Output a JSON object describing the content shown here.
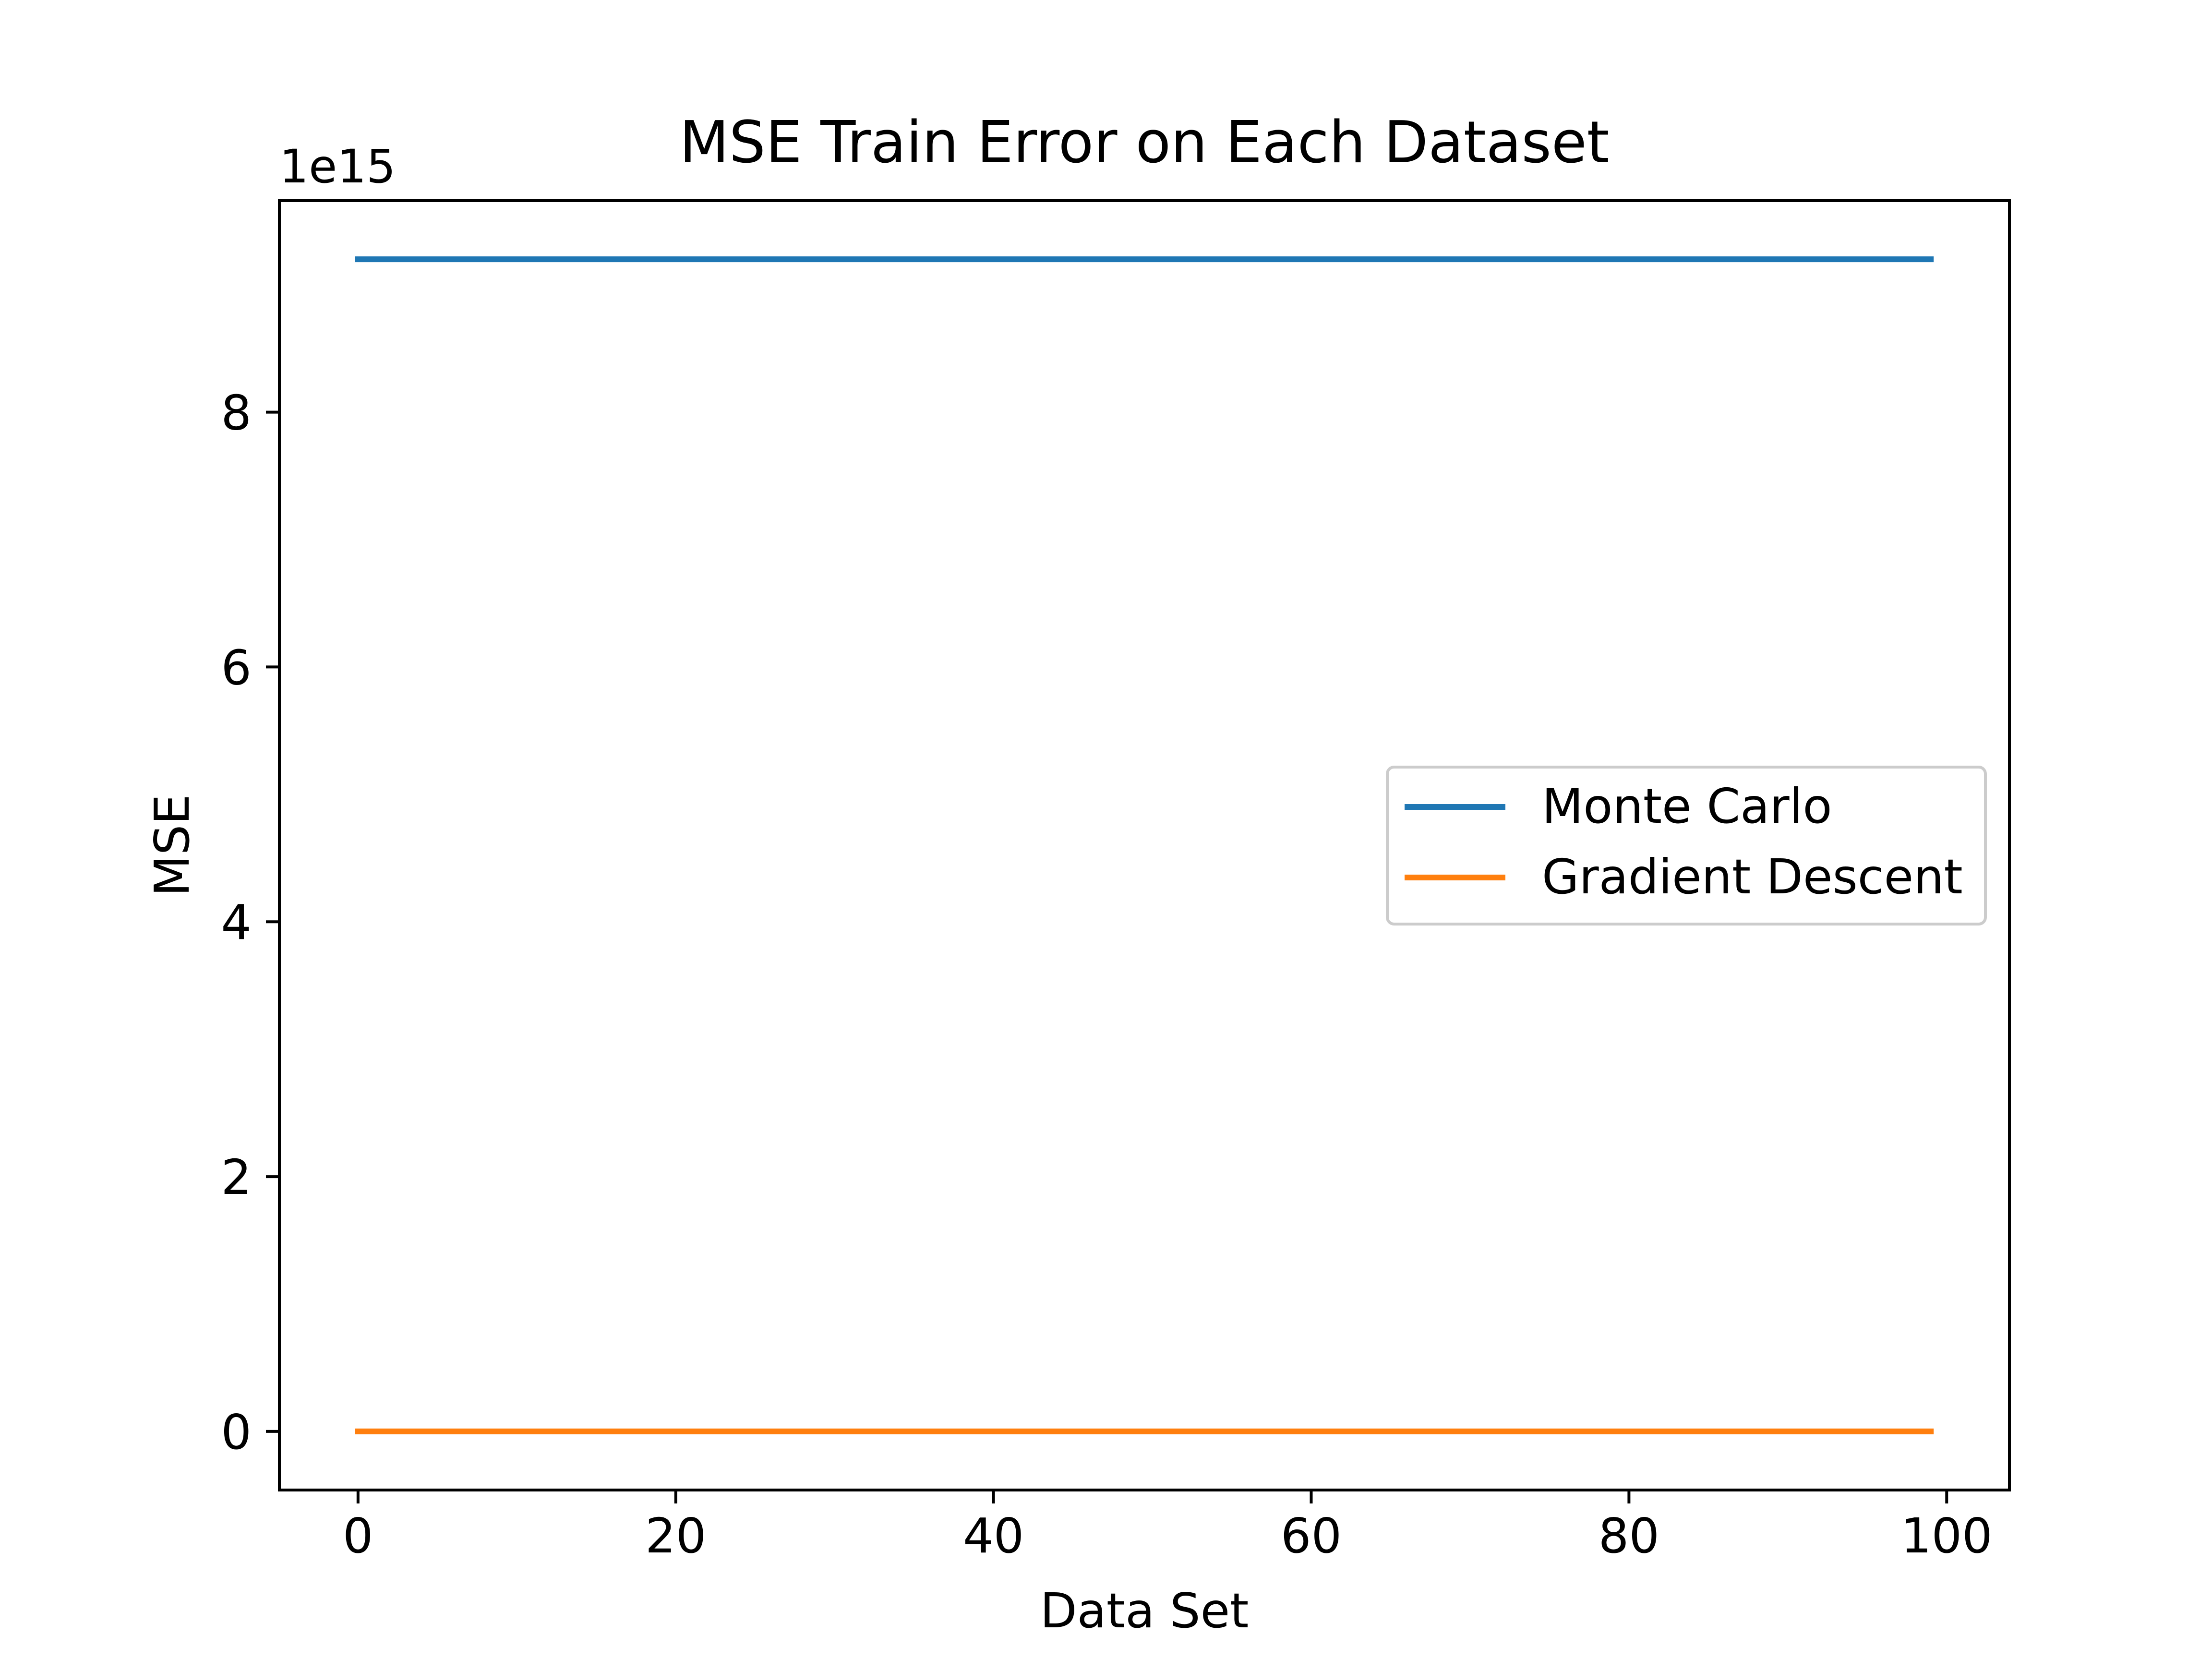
{
  "chart_data": {
    "type": "line",
    "title": "MSE Train Error on Each Dataset",
    "xlabel": "Data Set",
    "ylabel": "MSE",
    "y_offset_label": "1e15",
    "xlim": [
      -4.95,
      103.95
    ],
    "ylim": [
      -0.46,
      9.66
    ],
    "x_ticks": [
      0,
      20,
      40,
      60,
      80,
      100
    ],
    "x_tick_labels": [
      "0",
      "20",
      "40",
      "60",
      "80",
      "100"
    ],
    "y_ticks": [
      0,
      2,
      4,
      6,
      8
    ],
    "y_tick_labels": [
      "0",
      "2",
      "4",
      "6",
      "8"
    ],
    "x": [
      0,
      99
    ],
    "series": [
      {
        "name": "Monte Carlo",
        "color": "#1f77b4",
        "values": [
          9.2,
          9.2
        ]
      },
      {
        "name": "Gradient Descent",
        "color": "#ff7f0e",
        "values": [
          0.0,
          0.0
        ]
      }
    ],
    "legend": {
      "position": "center-right"
    },
    "grid": false
  }
}
